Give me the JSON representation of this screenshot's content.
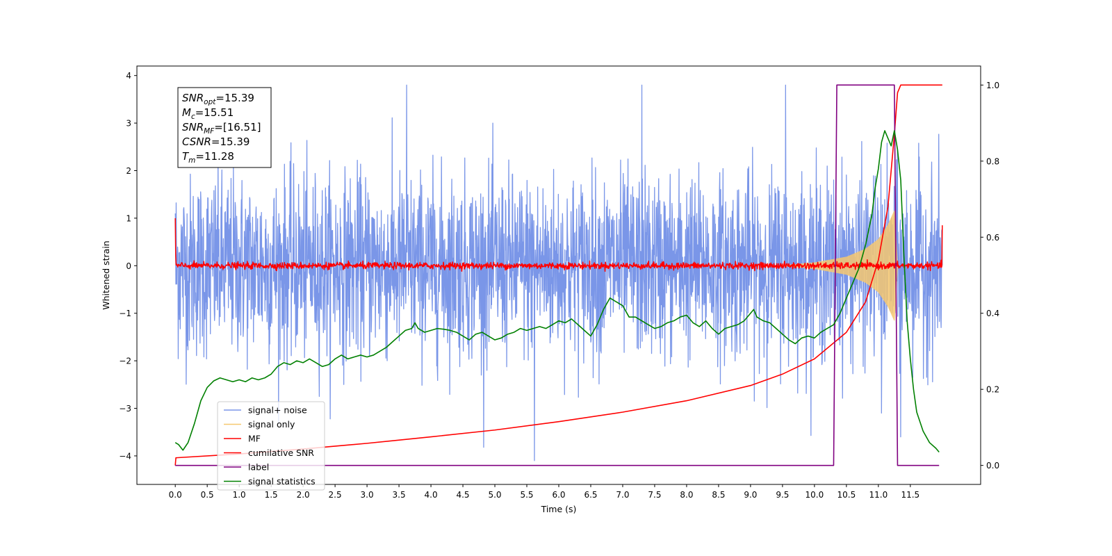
{
  "chart_data": {
    "type": "line",
    "xlabel": "Time (s)",
    "ylabel": "Whitened strain",
    "xlim": [
      -0.6,
      12.6
    ],
    "ylim": [
      -4.6,
      4.2
    ],
    "y2lim": [
      -0.05,
      1.05
    ],
    "x_ticks": [
      0.0,
      0.5,
      1.0,
      1.5,
      2.0,
      2.5,
      3.0,
      3.5,
      4.0,
      4.5,
      5.0,
      5.5,
      6.0,
      6.5,
      7.0,
      7.5,
      8.0,
      8.5,
      9.0,
      9.5,
      10.0,
      10.5,
      11.0,
      11.5
    ],
    "x_tick_labels": [
      "0.0",
      "0.5",
      "1.0",
      "1.5",
      "2.0",
      "2.5",
      "3.0",
      "3.5",
      "4.0",
      "4.5",
      "5.0",
      "5.5",
      "6.0",
      "6.5",
      "7.0",
      "7.5",
      "8.0",
      "8.5",
      "9.0",
      "9.5",
      "10.0",
      "10.5",
      "11.0",
      "11.5"
    ],
    "y_ticks": [
      -4,
      -3,
      -2,
      -1,
      0,
      1,
      2,
      3,
      4
    ],
    "y_tick_labels": [
      "−4",
      "−3",
      "−2",
      "−1",
      "0",
      "1",
      "2",
      "3",
      "4"
    ],
    "y2_ticks": [
      0.0,
      0.2,
      0.4,
      0.6,
      0.8,
      1.0
    ],
    "y2_tick_labels": [
      "0.0",
      "0.2",
      "0.4",
      "0.6",
      "0.8",
      "1.0"
    ],
    "legend_position": "lower-left",
    "annotation": {
      "lines": [
        {
          "main": "SNR",
          "sub": "opt",
          "value": "=15.39"
        },
        {
          "main": "M",
          "sub": "c",
          "value": "=15.51"
        },
        {
          "main": "SNR",
          "sub": "MF",
          "value": "=[16.51]"
        },
        {
          "main": "CSNR",
          "sub": "",
          "value": "=15.39"
        },
        {
          "main": "T",
          "sub": "m",
          "value": "=11.28"
        }
      ]
    },
    "series": [
      {
        "name": "signal+ noise",
        "color": "#7a96e8",
        "axis": "left",
        "kind": "noise",
        "x_range": [
          0.0,
          12.0
        ],
        "std": 0.95,
        "notable_peaks": [
          [
            3.62,
            3.8
          ],
          [
            7.3,
            3.8
          ],
          [
            5.62,
            -4.1
          ],
          [
            9.55,
            3.8
          ],
          [
            11.05,
            -3.1
          ],
          [
            11.35,
            -3.6
          ]
        ]
      },
      {
        "name": "signal only",
        "color": "#f6c870",
        "axis": "left",
        "kind": "chirp",
        "x_range": [
          9.5,
          11.3
        ],
        "envelope": [
          [
            9.5,
            0.0
          ],
          [
            10.0,
            0.06
          ],
          [
            10.5,
            0.18
          ],
          [
            10.8,
            0.35
          ],
          [
            11.0,
            0.55
          ],
          [
            11.15,
            0.85
          ],
          [
            11.25,
            1.15
          ],
          [
            11.3,
            0.0
          ]
        ]
      },
      {
        "name": "MF",
        "color": "#ff0000",
        "axis": "left",
        "kind": "noisy-flat",
        "x_range": [
          0.0,
          12.0
        ],
        "baseline": 0.0,
        "std": 0.035,
        "endpoints": [
          [
            0.0,
            1.0
          ],
          [
            12.0,
            0.85
          ]
        ]
      },
      {
        "name": "cumilative SNR",
        "color": "#ff0000",
        "axis": "right",
        "points": [
          [
            0.0,
            0.0
          ],
          [
            0.01,
            0.02
          ],
          [
            1.0,
            0.03
          ],
          [
            2.0,
            0.043
          ],
          [
            3.0,
            0.058
          ],
          [
            4.0,
            0.075
          ],
          [
            5.0,
            0.093
          ],
          [
            6.0,
            0.115
          ],
          [
            7.0,
            0.14
          ],
          [
            8.0,
            0.17
          ],
          [
            9.0,
            0.21
          ],
          [
            9.5,
            0.24
          ],
          [
            10.0,
            0.28
          ],
          [
            10.5,
            0.35
          ],
          [
            10.8,
            0.43
          ],
          [
            11.0,
            0.54
          ],
          [
            11.15,
            0.68
          ],
          [
            11.25,
            0.87
          ],
          [
            11.3,
            0.98
          ],
          [
            11.35,
            1.0
          ],
          [
            12.0,
            1.0
          ]
        ]
      },
      {
        "name": "label",
        "color": "#800080",
        "axis": "right",
        "points": [
          [
            0.0,
            0.0
          ],
          [
            10.3,
            0.0
          ],
          [
            10.35,
            1.0
          ],
          [
            11.25,
            1.0
          ],
          [
            11.3,
            0.0
          ],
          [
            11.95,
            0.0
          ]
        ]
      },
      {
        "name": "signal statistics",
        "color": "#008000",
        "axis": "right",
        "points": [
          [
            0.0,
            0.06
          ],
          [
            0.05,
            0.055
          ],
          [
            0.12,
            0.04
          ],
          [
            0.2,
            0.06
          ],
          [
            0.3,
            0.11
          ],
          [
            0.4,
            0.17
          ],
          [
            0.5,
            0.205
          ],
          [
            0.6,
            0.222
          ],
          [
            0.7,
            0.23
          ],
          [
            0.8,
            0.225
          ],
          [
            0.9,
            0.22
          ],
          [
            1.0,
            0.225
          ],
          [
            1.1,
            0.22
          ],
          [
            1.2,
            0.23
          ],
          [
            1.3,
            0.225
          ],
          [
            1.4,
            0.23
          ],
          [
            1.5,
            0.24
          ],
          [
            1.6,
            0.26
          ],
          [
            1.7,
            0.27
          ],
          [
            1.8,
            0.265
          ],
          [
            1.9,
            0.275
          ],
          [
            2.0,
            0.27
          ],
          [
            2.1,
            0.28
          ],
          [
            2.2,
            0.27
          ],
          [
            2.3,
            0.26
          ],
          [
            2.4,
            0.265
          ],
          [
            2.5,
            0.28
          ],
          [
            2.6,
            0.29
          ],
          [
            2.7,
            0.28
          ],
          [
            2.8,
            0.285
          ],
          [
            2.9,
            0.29
          ],
          [
            3.0,
            0.285
          ],
          [
            3.1,
            0.29
          ],
          [
            3.2,
            0.3
          ],
          [
            3.3,
            0.31
          ],
          [
            3.4,
            0.325
          ],
          [
            3.5,
            0.34
          ],
          [
            3.6,
            0.355
          ],
          [
            3.7,
            0.36
          ],
          [
            3.75,
            0.375
          ],
          [
            3.8,
            0.36
          ],
          [
            3.9,
            0.35
          ],
          [
            4.0,
            0.355
          ],
          [
            4.1,
            0.36
          ],
          [
            4.2,
            0.358
          ],
          [
            4.3,
            0.355
          ],
          [
            4.4,
            0.35
          ],
          [
            4.5,
            0.34
          ],
          [
            4.6,
            0.33
          ],
          [
            4.7,
            0.345
          ],
          [
            4.8,
            0.35
          ],
          [
            4.9,
            0.34
          ],
          [
            5.0,
            0.33
          ],
          [
            5.1,
            0.335
          ],
          [
            5.2,
            0.345
          ],
          [
            5.3,
            0.35
          ],
          [
            5.4,
            0.36
          ],
          [
            5.5,
            0.355
          ],
          [
            5.6,
            0.36
          ],
          [
            5.7,
            0.365
          ],
          [
            5.8,
            0.36
          ],
          [
            5.9,
            0.37
          ],
          [
            6.0,
            0.38
          ],
          [
            6.1,
            0.375
          ],
          [
            6.2,
            0.385
          ],
          [
            6.3,
            0.37
          ],
          [
            6.4,
            0.355
          ],
          [
            6.5,
            0.34
          ],
          [
            6.6,
            0.37
          ],
          [
            6.7,
            0.41
          ],
          [
            6.8,
            0.44
          ],
          [
            6.9,
            0.43
          ],
          [
            7.0,
            0.42
          ],
          [
            7.1,
            0.39
          ],
          [
            7.2,
            0.39
          ],
          [
            7.3,
            0.38
          ],
          [
            7.4,
            0.37
          ],
          [
            7.5,
            0.36
          ],
          [
            7.6,
            0.365
          ],
          [
            7.7,
            0.375
          ],
          [
            7.8,
            0.38
          ],
          [
            7.9,
            0.39
          ],
          [
            8.0,
            0.395
          ],
          [
            8.1,
            0.375
          ],
          [
            8.2,
            0.365
          ],
          [
            8.3,
            0.38
          ],
          [
            8.4,
            0.36
          ],
          [
            8.5,
            0.345
          ],
          [
            8.6,
            0.36
          ],
          [
            8.7,
            0.365
          ],
          [
            8.8,
            0.37
          ],
          [
            8.9,
            0.38
          ],
          [
            9.0,
            0.4
          ],
          [
            9.05,
            0.41
          ],
          [
            9.1,
            0.39
          ],
          [
            9.2,
            0.38
          ],
          [
            9.3,
            0.375
          ],
          [
            9.4,
            0.36
          ],
          [
            9.5,
            0.345
          ],
          [
            9.6,
            0.33
          ],
          [
            9.7,
            0.32
          ],
          [
            9.8,
            0.335
          ],
          [
            9.9,
            0.34
          ],
          [
            10.0,
            0.335
          ],
          [
            10.1,
            0.35
          ],
          [
            10.2,
            0.36
          ],
          [
            10.3,
            0.37
          ],
          [
            10.4,
            0.4
          ],
          [
            10.5,
            0.44
          ],
          [
            10.6,
            0.48
          ],
          [
            10.7,
            0.52
          ],
          [
            10.8,
            0.58
          ],
          [
            10.9,
            0.66
          ],
          [
            10.95,
            0.73
          ],
          [
            11.0,
            0.78
          ],
          [
            11.05,
            0.85
          ],
          [
            11.1,
            0.88
          ],
          [
            11.15,
            0.86
          ],
          [
            11.2,
            0.84
          ],
          [
            11.25,
            0.88
          ],
          [
            11.3,
            0.83
          ],
          [
            11.35,
            0.75
          ],
          [
            11.4,
            0.55
          ],
          [
            11.45,
            0.38
          ],
          [
            11.5,
            0.28
          ],
          [
            11.55,
            0.2
          ],
          [
            11.6,
            0.14
          ],
          [
            11.7,
            0.09
          ],
          [
            11.8,
            0.06
          ],
          [
            11.9,
            0.045
          ],
          [
            11.95,
            0.035
          ]
        ]
      }
    ]
  }
}
